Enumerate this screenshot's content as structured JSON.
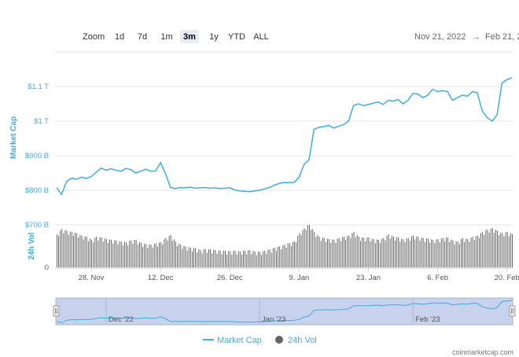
{
  "zoom": {
    "label": "Zoom",
    "buttons": [
      "1d",
      "7d",
      "1m",
      "3m",
      "1y",
      "YTD",
      "ALL"
    ],
    "active": "3m"
  },
  "date_range": {
    "from": "Nov 21, 2022",
    "arrow": "→",
    "to": "Feb 21, 2"
  },
  "credit": "coinmarketcap.com",
  "colors": {
    "market_cap_line": "#44aadd",
    "volume_bars": "#555555",
    "axis_text": "#44aadd",
    "navigator_fill": "#c7d2ec",
    "navigator_line": "#44aadd"
  },
  "chart_data": {
    "type": "line",
    "x_range": [
      "2022-11-21",
      "2023-02-21"
    ],
    "x_tick_labels": [
      "28. Nov",
      "12. Dec",
      "26. Dec",
      "9. Jan",
      "23. Jan",
      "6. Feb",
      "20. Feb"
    ],
    "x_tick_dates": [
      "2022-11-28",
      "2022-12-12",
      "2022-12-26",
      "2023-01-09",
      "2023-01-23",
      "2023-02-06",
      "2023-02-20"
    ],
    "market_cap": {
      "name": "Market Cap",
      "ylabel": "Market Cap",
      "ylim_billions": [
        750,
        1150
      ],
      "y_ticks": [
        {
          "value": 800,
          "label": "$800 B"
        },
        {
          "value": 900,
          "label": "$900 B"
        },
        {
          "value": 1000,
          "label": "$1 T"
        },
        {
          "value": 1100,
          "label": "$1.1 T"
        }
      ],
      "dates": [
        "2022-11-21",
        "2022-11-22",
        "2022-11-23",
        "2022-11-24",
        "2022-11-25",
        "2022-11-26",
        "2022-11-27",
        "2022-11-28",
        "2022-11-29",
        "2022-11-30",
        "2022-12-01",
        "2022-12-02",
        "2022-12-03",
        "2022-12-04",
        "2022-12-05",
        "2022-12-06",
        "2022-12-07",
        "2022-12-08",
        "2022-12-09",
        "2022-12-10",
        "2022-12-11",
        "2022-12-12",
        "2022-12-13",
        "2022-12-14",
        "2022-12-15",
        "2022-12-16",
        "2022-12-17",
        "2022-12-18",
        "2022-12-19",
        "2022-12-20",
        "2022-12-21",
        "2022-12-22",
        "2022-12-23",
        "2022-12-24",
        "2022-12-25",
        "2022-12-26",
        "2022-12-27",
        "2022-12-28",
        "2022-12-29",
        "2022-12-30",
        "2022-12-31",
        "2023-01-01",
        "2023-01-02",
        "2023-01-03",
        "2023-01-04",
        "2023-01-05",
        "2023-01-06",
        "2023-01-07",
        "2023-01-08",
        "2023-01-09",
        "2023-01-10",
        "2023-01-11",
        "2023-01-12",
        "2023-01-13",
        "2023-01-14",
        "2023-01-15",
        "2023-01-16",
        "2023-01-17",
        "2023-01-18",
        "2023-01-19",
        "2023-01-20",
        "2023-01-21",
        "2023-01-22",
        "2023-01-23",
        "2023-01-24",
        "2023-01-25",
        "2023-01-26",
        "2023-01-27",
        "2023-01-28",
        "2023-01-29",
        "2023-01-30",
        "2023-01-31",
        "2023-02-01",
        "2023-02-02",
        "2023-02-03",
        "2023-02-04",
        "2023-02-05",
        "2023-02-06",
        "2023-02-07",
        "2023-02-08",
        "2023-02-09",
        "2023-02-10",
        "2023-02-11",
        "2023-02-12",
        "2023-02-13",
        "2023-02-14",
        "2023-02-15",
        "2023-02-16",
        "2023-02-17",
        "2023-02-18",
        "2023-02-19",
        "2023-02-20",
        "2023-02-21"
      ],
      "values_billions": [
        808,
        788,
        825,
        835,
        832,
        838,
        834,
        840,
        852,
        864,
        858,
        862,
        858,
        855,
        863,
        860,
        850,
        855,
        861,
        855,
        856,
        880,
        848,
        808,
        805,
        808,
        807,
        809,
        806,
        807,
        808,
        806,
        807,
        805,
        806,
        807,
        801,
        798,
        797,
        796,
        798,
        800,
        804,
        808,
        815,
        820,
        822,
        822,
        823,
        838,
        875,
        888,
        976,
        982,
        984,
        988,
        980,
        985,
        990,
        1000,
        1045,
        1050,
        1045,
        1048,
        1052,
        1055,
        1048,
        1060,
        1058,
        1062,
        1050,
        1060,
        1080,
        1078,
        1068,
        1075,
        1092,
        1085,
        1088,
        1085,
        1060,
        1068,
        1075,
        1072,
        1085,
        1082,
        1030,
        1010,
        1000,
        1018,
        1110,
        1120,
        1125
      ]
    },
    "volume": {
      "name": "24h Vol",
      "ylabel": "24h Vol",
      "y_ticks": [
        {
          "value": 0,
          "label": "0"
        },
        {
          "value": 700,
          "label": "$700 B"
        }
      ],
      "ylim_billions": [
        0,
        700
      ],
      "values_billions": [
        520,
        610,
        580,
        560,
        540,
        500,
        480,
        430,
        480,
        470,
        440,
        430,
        420,
        400,
        390,
        420,
        430,
        380,
        360,
        350,
        370,
        390,
        460,
        510,
        400,
        350,
        320,
        300,
        290,
        260,
        280,
        270,
        260,
        250,
        250,
        240,
        250,
        240,
        250,
        260,
        240,
        230,
        250,
        270,
        300,
        320,
        350,
        380,
        400,
        540,
        620,
        700,
        560,
        480,
        460,
        440,
        430,
        460,
        480,
        500,
        560,
        480,
        460,
        470,
        440,
        430,
        460,
        520,
        480,
        470,
        440,
        460,
        500,
        480,
        460,
        450,
        430,
        440,
        460,
        470,
        420,
        400,
        460,
        440,
        480,
        500,
        560,
        600,
        620,
        580,
        540,
        560,
        520
      ]
    }
  },
  "navigator": {
    "tick_labels": [
      "Dec '22",
      "Jan '23",
      "Feb '23"
    ]
  },
  "legend": {
    "market_cap": "Market Cap",
    "volume": "24h Vol"
  }
}
